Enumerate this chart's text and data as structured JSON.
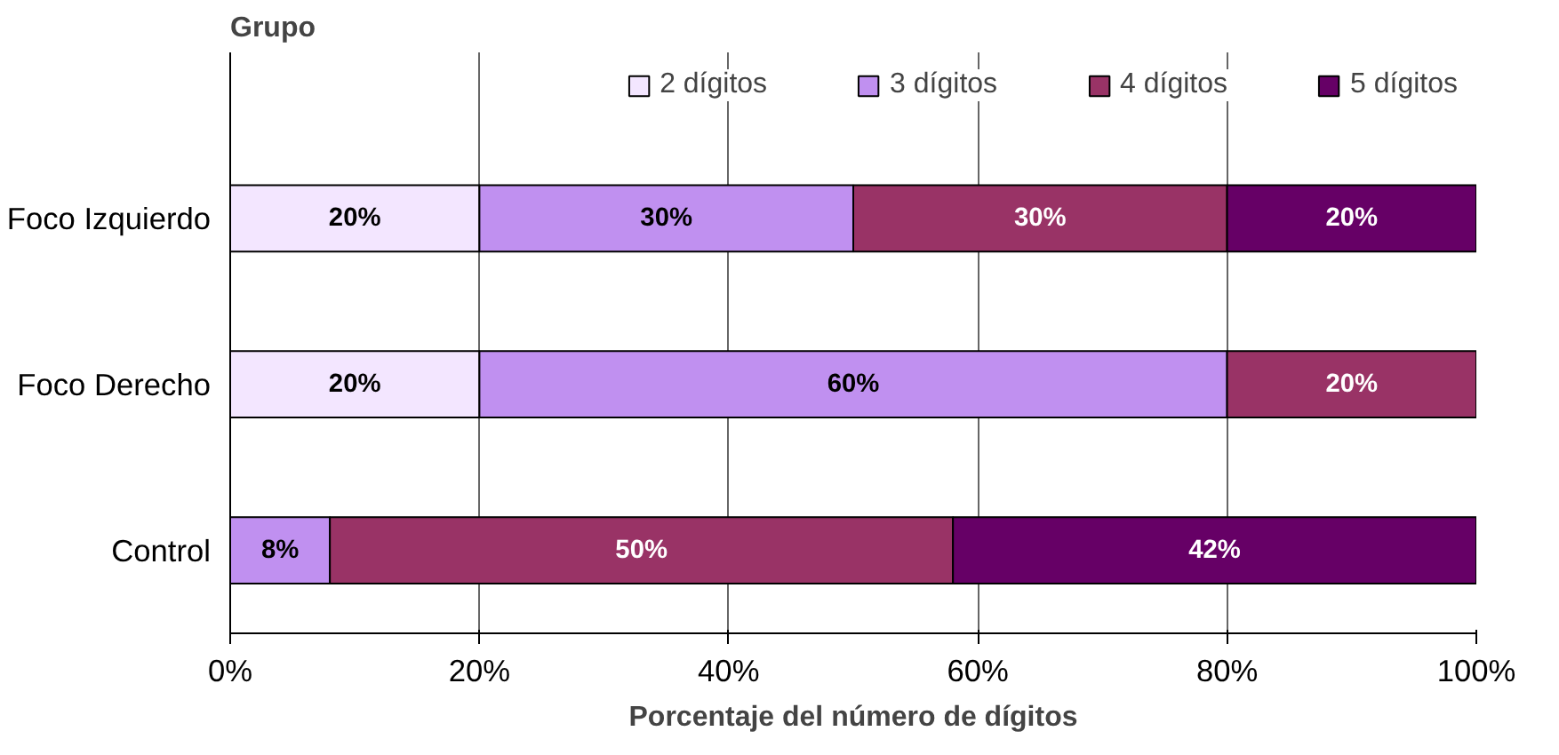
{
  "chart_data": {
    "type": "bar",
    "orientation": "horizontal",
    "stacked": true,
    "ylabel": "Grupo",
    "xlabel": "Porcentaje del número de dígitos",
    "categories": [
      "Foco Izquierdo",
      "Foco Derecho",
      "Control"
    ],
    "series": [
      {
        "name": "2 dígitos",
        "color": "#f3e6ff",
        "values": [
          20,
          20,
          null
        ]
      },
      {
        "name": "3 dígitos",
        "color": "#c090f0",
        "values": [
          30,
          60,
          8
        ]
      },
      {
        "name": "4 dígitos",
        "color": "#993366",
        "values": [
          30,
          20,
          50
        ]
      },
      {
        "name": "5 dígitos",
        "color": "#660066",
        "values": [
          20,
          null,
          42
        ]
      }
    ],
    "xlim": [
      0,
      100
    ],
    "xticks": [
      {
        "value": 0,
        "label": "0%"
      },
      {
        "value": 20,
        "label": "20%"
      },
      {
        "value": 40,
        "label": "40%"
      },
      {
        "value": 60,
        "label": "60%"
      },
      {
        "value": 80,
        "label": "80%"
      },
      {
        "value": 100,
        "label": "100%"
      }
    ],
    "value_labels": [
      [
        "20%",
        "20%",
        null
      ],
      [
        "30%",
        "60%",
        "8%"
      ],
      [
        "30%",
        "20%",
        "50%"
      ],
      [
        "20%",
        null,
        "42%"
      ]
    ],
    "grid": "x",
    "legend": "top"
  }
}
